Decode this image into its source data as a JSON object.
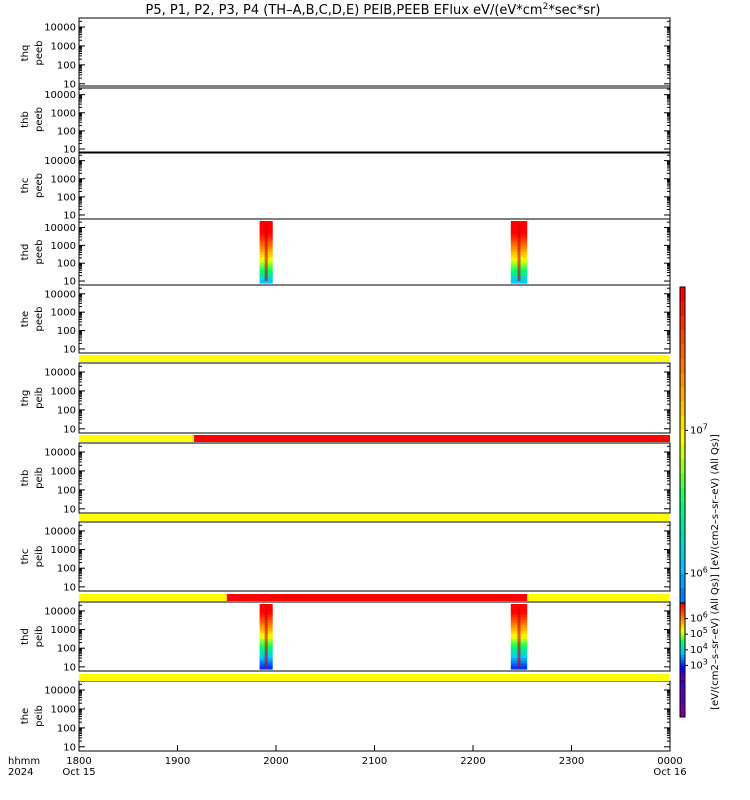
{
  "chart_data": {
    "type": "heatmap",
    "title_main": "P5, P1, P2, P3, P4 (TH–A,B,C,D,E) PEIB,PEEB EFlux eV/(eV*cm",
    "title_sup": "2",
    "title_tail": "*sec*sr)",
    "x_axis": {
      "range_hhmm": [
        1800,
        2400
      ],
      "major_ticks": [
        "1800",
        "1900",
        "2000",
        "2100",
        "2200",
        "2300",
        "0000"
      ],
      "start_date": "Oct 15",
      "end_date": "Oct 16",
      "row_label_1": "hhmm",
      "row_label_2": "2024"
    },
    "y_axis": {
      "scale": "log",
      "range": [
        6,
        30000
      ],
      "ticks": [
        "10",
        "100",
        "1000",
        "10000"
      ]
    },
    "panels": [
      {
        "label1": "thq",
        "label2": "peeb",
        "has_data": false
      },
      {
        "label1": "thb",
        "label2": "peeb",
        "has_data": false
      },
      {
        "label1": "thc",
        "label2": "peeb",
        "has_data": false
      },
      {
        "label1": "thd",
        "label2": "peeb",
        "has_data": true,
        "intervals_hhmm": [
          [
            1950,
            1958
          ],
          [
            2223,
            2233
          ]
        ]
      },
      {
        "label1": "the",
        "label2": "peeb",
        "has_data": false
      },
      {
        "label1": "thg",
        "label2": "peib",
        "has_data": false
      },
      {
        "label1": "thb",
        "label2": "peib",
        "has_data": false
      },
      {
        "label1": "thc",
        "label2": "peib",
        "has_data": false
      },
      {
        "label1": "thd",
        "label2": "peib",
        "has_data": true,
        "intervals_hhmm": [
          [
            1950,
            1958
          ],
          [
            2223,
            2233
          ]
        ]
      },
      {
        "label1": "the",
        "label2": "peib",
        "has_data": false
      }
    ],
    "status_bars": [
      {
        "after_panel": 4,
        "segments": [
          {
            "from": 1800,
            "to": 2400,
            "color": "yellow"
          }
        ]
      },
      {
        "after_panel": 5,
        "segments": [
          {
            "from": 1800,
            "to": 1910,
            "color": "yellow"
          },
          {
            "from": 1910,
            "to": 2400,
            "color": "red"
          }
        ]
      },
      {
        "after_panel": 6,
        "segments": [
          {
            "from": 1800,
            "to": 2400,
            "color": "yellow"
          }
        ]
      },
      {
        "after_panel": 7,
        "segments": [
          {
            "from": 1800,
            "to": 1930,
            "color": "yellow"
          },
          {
            "from": 1930,
            "to": 2233,
            "color": "red"
          },
          {
            "from": 2233,
            "to": 2400,
            "color": "yellow"
          }
        ]
      },
      {
        "after_panel": 8,
        "segments": [
          {
            "from": 1800,
            "to": 2400,
            "color": "yellow"
          }
        ]
      }
    ],
    "colorbars": [
      {
        "for_panel": 3,
        "label": "[eV/(cm2–s–sr–eV) (All Qs)]",
        "ticks": [
          {
            "base": "10",
            "exp": "7"
          },
          {
            "base": "10",
            "exp": "6"
          }
        ]
      },
      {
        "for_panel": 8,
        "label": "[eV/(cm2–s–sr–eV) (All Qs)]",
        "ticks": [
          {
            "base": "10",
            "exp": "6"
          },
          {
            "base": "10",
            "exp": "5"
          },
          {
            "base": "10",
            "exp": "4"
          },
          {
            "base": "10",
            "exp": "3"
          }
        ]
      }
    ],
    "colors": {
      "yellow": "#ffff00",
      "red": "#ff0000",
      "axis": "#000000"
    }
  }
}
